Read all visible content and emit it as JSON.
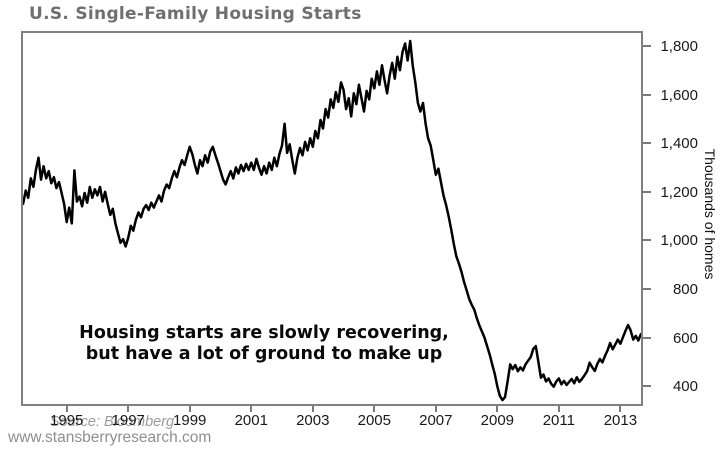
{
  "page": {
    "title": "U.S. Single-Family Housing Starts",
    "website": "www.stansberryresearch.com"
  },
  "chart_data": {
    "type": "line",
    "title": "U.S. Single-Family Housing Starts",
    "ylabel": "Thousands of homes",
    "source": "Source: Bloomberg",
    "annotation_line1": "Housing starts are slowly recovering,",
    "annotation_line2": "but have a lot of ground to make up",
    "grid": false,
    "legend": "none",
    "line_color": "#000000",
    "x_range": [
      1993.58,
      2013.67
    ],
    "y_range": [
      327,
      1853
    ],
    "x_tick_values": [
      1995,
      1997,
      1999,
      2001,
      2003,
      2005,
      2007,
      2009,
      2011,
      2013
    ],
    "x_tick_labels": [
      "1995",
      "1997",
      "1999",
      "2001",
      "2003",
      "2005",
      "2007",
      "2009",
      "2011",
      "2013"
    ],
    "y_tick_values": [
      400,
      600,
      800,
      1000,
      1200,
      1400,
      1600,
      1800
    ],
    "y_tick_labels": [
      "400",
      "600",
      "800",
      "1,000",
      "1,200",
      "1,400",
      "1,600",
      "1,800"
    ],
    "series": {
      "start_year": 1993.5833,
      "points_per_year": 12,
      "values": [
        1150,
        1205,
        1175,
        1255,
        1220,
        1290,
        1340,
        1250,
        1305,
        1255,
        1285,
        1235,
        1260,
        1215,
        1240,
        1195,
        1150,
        1075,
        1135,
        1070,
        1288,
        1160,
        1180,
        1140,
        1195,
        1155,
        1220,
        1175,
        1210,
        1185,
        1220,
        1160,
        1200,
        1150,
        1105,
        1130,
        1070,
        1030,
        990,
        1005,
        975,
        1010,
        1060,
        1040,
        1085,
        1115,
        1095,
        1130,
        1145,
        1125,
        1155,
        1135,
        1160,
        1185,
        1160,
        1205,
        1230,
        1215,
        1255,
        1285,
        1260,
        1300,
        1330,
        1310,
        1350,
        1385,
        1355,
        1310,
        1275,
        1330,
        1305,
        1350,
        1320,
        1365,
        1385,
        1350,
        1320,
        1285,
        1250,
        1230,
        1260,
        1285,
        1255,
        1300,
        1275,
        1310,
        1285,
        1315,
        1290,
        1320,
        1290,
        1335,
        1300,
        1270,
        1305,
        1275,
        1320,
        1290,
        1340,
        1305,
        1355,
        1390,
        1480,
        1360,
        1395,
        1330,
        1275,
        1340,
        1380,
        1350,
        1405,
        1370,
        1420,
        1385,
        1450,
        1420,
        1495,
        1460,
        1540,
        1505,
        1580,
        1545,
        1610,
        1570,
        1650,
        1620,
        1540,
        1585,
        1510,
        1605,
        1560,
        1640,
        1585,
        1530,
        1615,
        1580,
        1665,
        1625,
        1695,
        1640,
        1720,
        1660,
        1605,
        1680,
        1730,
        1665,
        1755,
        1700,
        1775,
        1810,
        1740,
        1820,
        1720,
        1650,
        1565,
        1530,
        1565,
        1480,
        1420,
        1390,
        1330,
        1270,
        1295,
        1240,
        1185,
        1145,
        1100,
        1045,
        985,
        935,
        905,
        870,
        830,
        795,
        760,
        735,
        715,
        680,
        650,
        625,
        600,
        565,
        530,
        490,
        450,
        400,
        360,
        343,
        355,
        420,
        490,
        470,
        487,
        462,
        478,
        465,
        490,
        505,
        520,
        553,
        565,
        500,
        435,
        448,
        420,
        432,
        410,
        398,
        420,
        432,
        408,
        422,
        405,
        418,
        430,
        412,
        437,
        418,
        430,
        445,
        462,
        497,
        478,
        463,
        492,
        512,
        498,
        525,
        548,
        578,
        552,
        572,
        592,
        575,
        602,
        628,
        652,
        630,
        592,
        607,
        588,
        614
      ]
    }
  },
  "colors": {
    "title": "#6f6f6f",
    "plot_border": "#808080",
    "line": "#000000",
    "annotation": "#0a0a0a",
    "source": "#9b9b9b",
    "website": "#8f8f8f",
    "tick_label": "#1a1a1a"
  }
}
